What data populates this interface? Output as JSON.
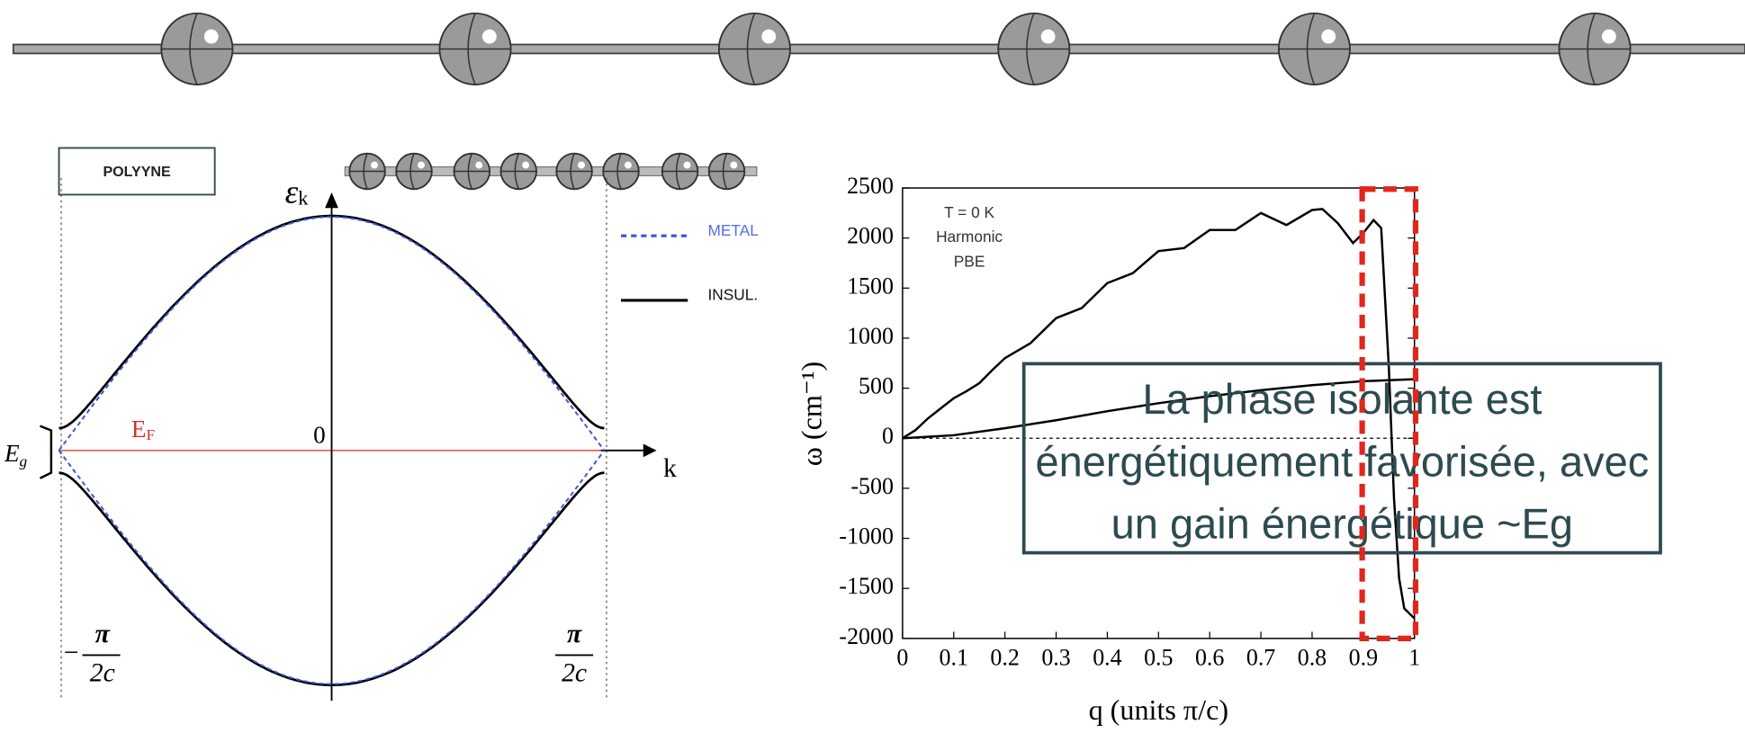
{
  "band_diagram": {
    "title": "POLYYNE",
    "y_label": "ε",
    "y_label_sub": "k",
    "x_label": "k",
    "origin": "0",
    "fermi": "E",
    "fermi_sub": "F",
    "gap": "E",
    "gap_sub": "g",
    "k_left": {
      "sign": "−",
      "num": "π",
      "den": "2c"
    },
    "k_right": {
      "num": "π",
      "den": "2c"
    },
    "legend": [
      "METAL",
      "INSUL."
    ]
  },
  "chart_data": {
    "type": "line",
    "xlabel": "q (units π/c)",
    "ylabel": "ω (cm⁻¹)",
    "annotations": [
      "T = 0 K",
      "Harmonic",
      "PBE"
    ],
    "xlim": [
      0,
      1
    ],
    "xticks": [
      0,
      0.1,
      0.2,
      0.3,
      0.4,
      0.5,
      0.6,
      0.7,
      0.8,
      0.9,
      1
    ],
    "ylim": [
      -2000,
      2500
    ],
    "yticks": [
      -2000,
      -1500,
      -1000,
      -500,
      0,
      500,
      1000,
      1500,
      2000,
      2500
    ],
    "series": [
      {
        "color": "#000000",
        "x": [
          0,
          0.025,
          0.05,
          0.075,
          0.1,
          0.125,
          0.15,
          0.175,
          0.2,
          0.25,
          0.3,
          0.35,
          0.4,
          0.45,
          0.5,
          0.55,
          0.6,
          0.65,
          0.7,
          0.75,
          0.8,
          0.82,
          0.85,
          0.88,
          0.9,
          0.92,
          0.935,
          0.95,
          0.96,
          0.97,
          0.98,
          1
        ],
        "values": [
          0,
          80,
          200,
          300,
          400,
          470,
          550,
          680,
          800,
          950,
          1200,
          1300,
          1550,
          1650,
          1870,
          1900,
          2080,
          2080,
          2250,
          2130,
          2280,
          2290,
          2150,
          1950,
          2050,
          2180,
          2100,
          700,
          -600,
          -1400,
          -1700,
          -1800
        ]
      },
      {
        "color": "#000000",
        "x": [
          0,
          0.1,
          0.2,
          0.3,
          0.4,
          0.5,
          0.6,
          0.7,
          0.8,
          0.9,
          1
        ],
        "values": [
          0,
          30,
          100,
          180,
          270,
          350,
          420,
          480,
          530,
          570,
          590
        ]
      }
    ]
  },
  "callout": [
    "La phase isolante est",
    "énergétiquement favorisée, avec",
    "un gain énergétique ~Eg"
  ]
}
